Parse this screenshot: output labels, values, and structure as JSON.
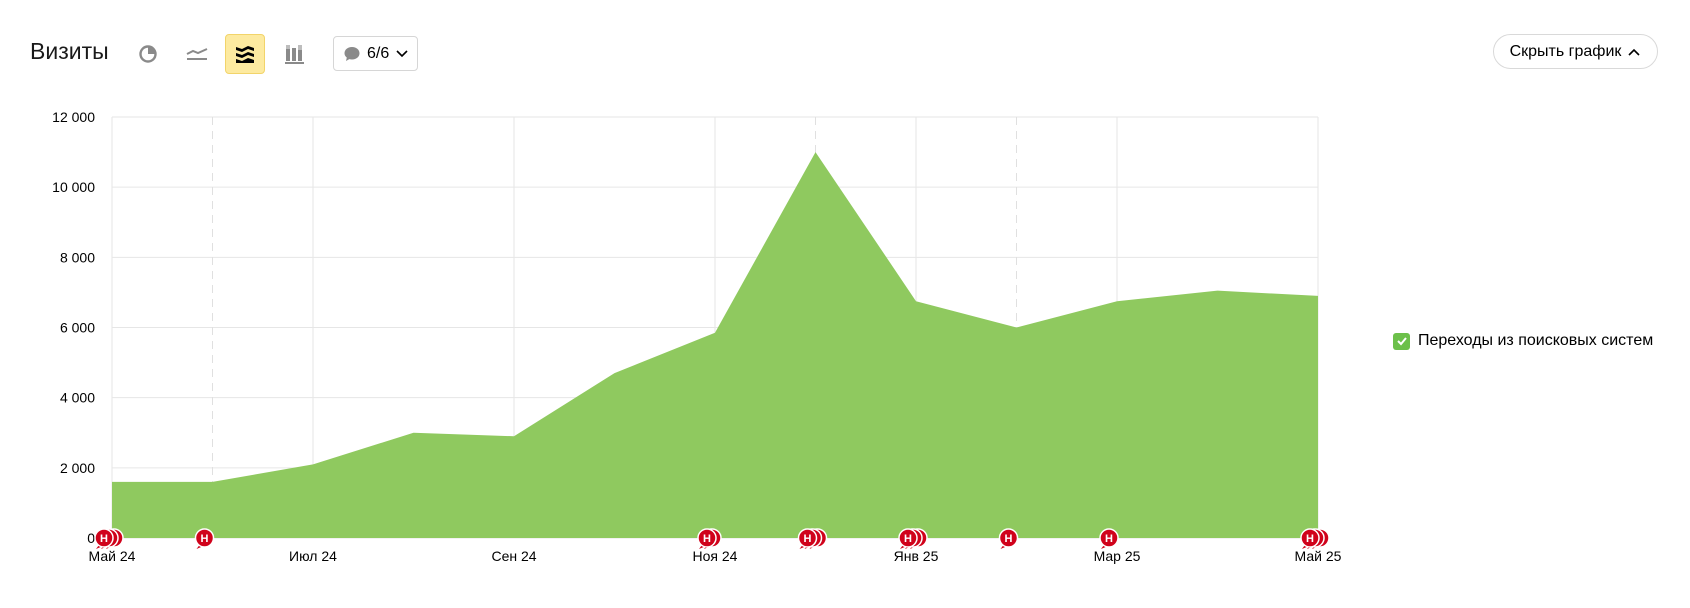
{
  "header": {
    "title": "Визиты",
    "notes_label": "6/6",
    "hide_label": "Скрыть график"
  },
  "toolbar": {
    "tools": [
      {
        "name": "pie-chart-icon",
        "active": false
      },
      {
        "name": "line-chart-icon",
        "active": false
      },
      {
        "name": "area-chart-icon",
        "active": true
      },
      {
        "name": "bar-chart-icon",
        "active": false
      }
    ]
  },
  "legend": {
    "label": "Переходы из поисковых систем",
    "checked": true
  },
  "colors": {
    "area": "#8fc95f",
    "marker": "#d0021b",
    "active_tool": "#fdeaa0"
  },
  "annotation_marker_letter": "Н",
  "chart_data": {
    "type": "area",
    "title": "",
    "xlabel": "",
    "ylabel": "",
    "ylim": [
      0,
      12000
    ],
    "yticks": [
      0,
      2000,
      4000,
      6000,
      8000,
      10000,
      12000
    ],
    "ytick_labels": [
      "0",
      "2 000",
      "4 000",
      "6 000",
      "8 000",
      "10 000",
      "12 000"
    ],
    "x": [
      "2024-05",
      "2024-06",
      "2024-07",
      "2024-08",
      "2024-09",
      "2024-10",
      "2024-11",
      "2024-12",
      "2025-01",
      "2025-02",
      "2025-03",
      "2025-04",
      "2025-05"
    ],
    "xtick_labels": [
      "Май 24",
      "Июл 24",
      "Сен 24",
      "Ноя 24",
      "Янв 25",
      "Мар 25",
      "Май 25"
    ],
    "xtick_positions": [
      "2024-05",
      "2024-07",
      "2024-09",
      "2024-11",
      "2025-01",
      "2025-03",
      "2025-05"
    ],
    "series": [
      {
        "name": "Переходы из поисковых систем",
        "values": [
          1600,
          1600,
          2100,
          3000,
          2900,
          4700,
          5850,
          11000,
          6750,
          6000,
          6750,
          7050,
          6900
        ]
      }
    ],
    "dashed_gridlines_at": [
      "2024-06",
      "2024-12",
      "2025-02"
    ],
    "annotations": [
      {
        "x": "2024-05",
        "count": 3
      },
      {
        "x": "2024-06",
        "count": 1
      },
      {
        "x": "2024-11",
        "count": 2
      },
      {
        "x": "2024-12",
        "count": 3
      },
      {
        "x": "2025-01",
        "count": 3
      },
      {
        "x": "2025-02",
        "count": 1
      },
      {
        "x": "2025-03",
        "count": 1
      },
      {
        "x": "2025-05",
        "count": 3
      }
    ],
    "grid": true,
    "legend_position": "right"
  }
}
